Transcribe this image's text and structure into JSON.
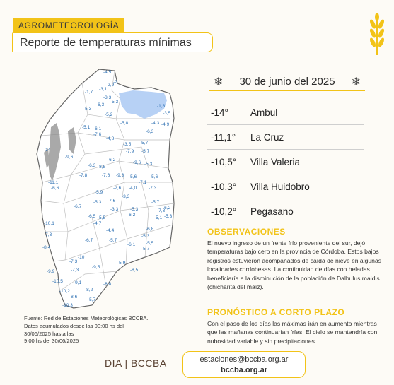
{
  "header": {
    "tag": "AGROMETEOROLOGÍA",
    "title": "Reporte de temperaturas mínimas"
  },
  "date": "30 de junio del 2025",
  "ranking": [
    {
      "temp": "-14°",
      "location": "Ambul"
    },
    {
      "temp": "-11,1°",
      "location": "La Cruz"
    },
    {
      "temp": "-10,5°",
      "location": "Villa Valeria"
    },
    {
      "temp": "-10,3°",
      "location": "Villa Huidobro"
    },
    {
      "temp": "-10,2°",
      "location": "Pegasano"
    }
  ],
  "observaciones": {
    "title": "OBSERVACIONES",
    "text": "El nuevo ingreso de un frente frío proveniente del sur, dejó temperaturas bajo cero en la provincia de Córdoba. Estos bajos registros estuvieron acompañados de caída de nieve en algunas localidades cordobesas. La continuidad de días con heladas beneficiaría a la disminución de la población de Dalbulus maidis (chicharita del maíz)."
  },
  "pronostico": {
    "title": "PRONÓSTICO A CORTO PLAZO",
    "text": "Con el paso de los días las máximas irán en aumento mientras que las mañanas continuarían frías. El cielo se mantendría con nubosidad variable y sin precipitaciones."
  },
  "source": {
    "line1": "Fuente: Red de Estaciones Meteorológicas BCCBA.",
    "line2": "Datos acumulados desde las 00:00 hs del",
    "line3": "30/06/2025 hasta las",
    "line4": "9:00 hs del 30/06/2025"
  },
  "footer": {
    "brand": "DIA | BCCBA",
    "email": "estaciones@bccba.org.ar",
    "web": "bccba.org.ar"
  },
  "map_values": [
    "-4,5",
    "-2,1",
    "-1,7",
    "-3,1",
    "-2,9",
    "-3,3",
    "-5,3",
    "-6,3",
    "-5,3",
    "-1,8",
    "-3,5",
    "-5,2",
    "-4,3",
    "-4,9",
    "-5,1",
    "-5,8",
    "-6,1",
    "-6,3",
    "-7,6",
    "-4,8",
    "-3,5",
    "-5,7",
    "-14",
    "-9,6",
    "-7,9",
    "-5,7",
    "-6,2",
    "-9,6",
    "-5,3",
    "-6,3",
    "-8,5",
    "-7,8",
    "-7,6",
    "-9,6",
    "-5,6",
    "-11,1",
    "-5,6",
    "-7,1",
    "-6,6",
    "-2,6",
    "-4,0",
    "-7,3",
    "-5,9",
    "-3,3",
    "-7,6",
    "-6,7",
    "-5,3",
    "-3,3",
    "-5,3",
    "-6,5",
    "-6,2",
    "-5,7",
    "-6,2",
    "-10,1",
    "-5,5",
    "-7,3",
    "-4,7",
    "-5,1",
    "-5,3",
    "-4,4",
    "-6,8",
    "-7,3",
    "-6,7",
    "-5,7",
    "-5,3",
    "-8,4",
    "-6,1",
    "-5,5",
    "-5,7",
    "-10",
    "-7,3",
    "-5,9",
    "-9,5",
    "-8,5",
    "-9,9",
    "-7,3",
    "-10,5",
    "-9,1",
    "-6,8",
    "-10,2",
    "-8,2",
    "-8,6",
    "-5,7",
    "-10,3"
  ],
  "colors": {
    "accent": "#f2c318",
    "value_text": "#2c6fb2",
    "lake": "#b7d1f5",
    "mountain": "#8d8d8d",
    "brand": "#5a4232"
  }
}
